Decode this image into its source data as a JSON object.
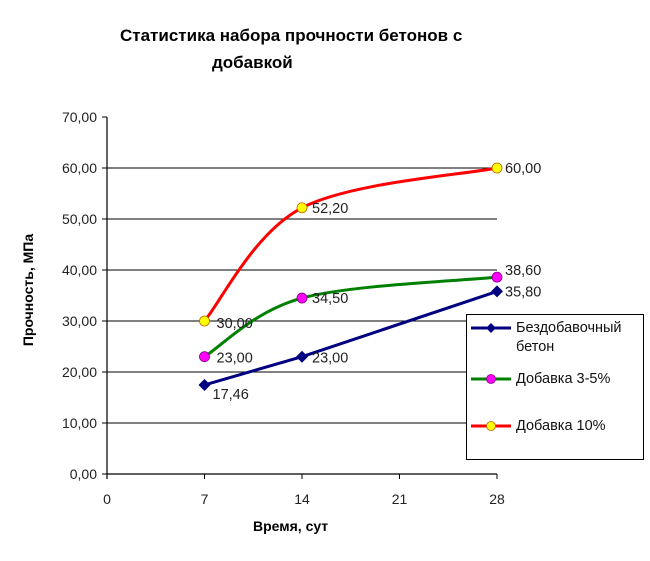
{
  "chart_data": {
    "type": "line",
    "title": "Статистика набора прочности бетонов с добавкой",
    "title_lines": [
      "Статистика набора прочности бетонов с",
      "добавкой"
    ],
    "xlabel": "Время, сут",
    "ylabel": "Прочность, МПа",
    "x_ticks": [
      "0",
      "7",
      "14",
      "21",
      "28"
    ],
    "y_ticks": [
      "0,00",
      "10,00",
      "20,00",
      "30,00",
      "40,00",
      "50,00",
      "60,00",
      "70,00"
    ],
    "xlim": [
      0,
      28
    ],
    "ylim": [
      0,
      70
    ],
    "grid": "horizontal major gridlines",
    "legend_position": "right, bottom-aligned",
    "x": [
      7,
      14,
      28
    ],
    "series": [
      {
        "name": "Бездобавочный бетон",
        "legend_lines": [
          "Бездобавочный",
          "бетон"
        ],
        "values": [
          17.46,
          23.0,
          35.8
        ],
        "labels": [
          "17,46",
          "23,00",
          "35,80"
        ],
        "color": "#000080",
        "marker": "diamond",
        "marker_color": "#000080",
        "smoothed": false
      },
      {
        "name": "Добавка 3-5%",
        "legend_lines": [
          "Добавка 3-5%"
        ],
        "values": [
          23.0,
          34.5,
          38.6
        ],
        "labels": [
          "23,00",
          "34,50",
          "38,60"
        ],
        "color": "#008000",
        "marker": "circle",
        "marker_color": "#ff00ff",
        "smoothed": true
      },
      {
        "name": "Добавка 10%",
        "legend_lines": [
          "Добавка 10%"
        ],
        "values": [
          30.0,
          52.2,
          60.0
        ],
        "labels": [
          "30,00",
          "52,20",
          "60,00"
        ],
        "color": "#ff0000",
        "marker": "circle",
        "marker_color": "#ffff00",
        "smoothed": true
      }
    ]
  }
}
